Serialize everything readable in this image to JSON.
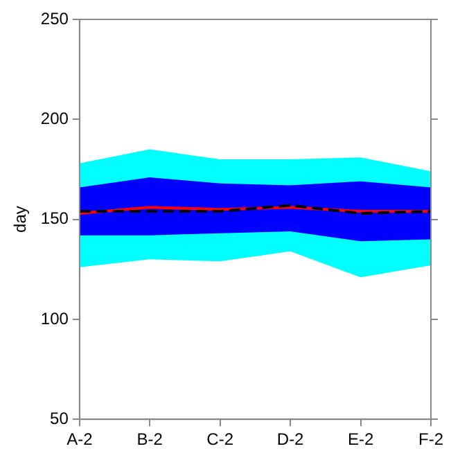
{
  "chart_data": {
    "type": "line",
    "ylabel": "day",
    "categories": [
      "A-2",
      "B-2",
      "C-2",
      "D-2",
      "E-2",
      "F-2"
    ],
    "series": [
      {
        "color": "#ff0000",
        "line_style": "solid",
        "values": [
          153,
          156,
          155,
          156,
          154,
          154
        ],
        "lower": [
          142,
          142,
          143,
          144,
          139,
          140
        ],
        "upper": [
          166,
          171,
          168,
          167,
          169,
          166
        ]
      },
      {
        "color": "#000000",
        "line_style": "dashed",
        "values": [
          154,
          154,
          154,
          157,
          153,
          154
        ],
        "lower": [
          126,
          130,
          129,
          134,
          121,
          127
        ],
        "upper": [
          178,
          185,
          180,
          180,
          181,
          174
        ]
      }
    ],
    "ylim": [
      50,
      250
    ],
    "yticks": [
      50,
      100,
      150,
      200,
      250
    ],
    "grid": false,
    "legend": false,
    "marker": "none"
  }
}
